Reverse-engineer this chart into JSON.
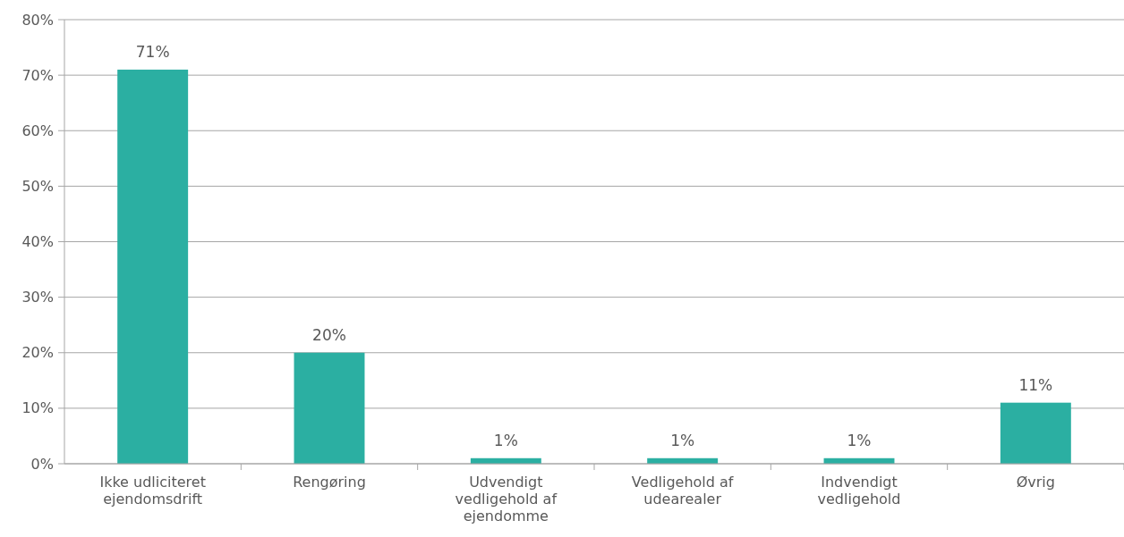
{
  "chart_data": {
    "type": "bar",
    "categories": [
      "Ikke udliciteret ejendomsdrift",
      "Rengøring",
      "Udvendigt vedligehold af ejendomme",
      "Vedligehold af udearealer",
      "Indvendigt vedligehold",
      "Øvrig"
    ],
    "values": [
      71,
      20,
      1,
      1,
      1,
      11
    ],
    "value_labels": [
      "71%",
      "20%",
      "1%",
      "1%",
      "1%",
      "11%"
    ],
    "color": "#2bafa2",
    "ylim": [
      0,
      80
    ],
    "yticks": [
      {
        "value": 0,
        "label": "0%"
      },
      {
        "value": 10,
        "label": "10%"
      },
      {
        "value": 20,
        "label": "20%"
      },
      {
        "value": 30,
        "label": "30%"
      },
      {
        "value": 40,
        "label": "40%"
      },
      {
        "value": 50,
        "label": "50%"
      },
      {
        "value": 60,
        "label": "60%"
      },
      {
        "value": 70,
        "label": "70%"
      },
      {
        "value": 80,
        "label": "80%"
      }
    ],
    "grid": "y"
  }
}
